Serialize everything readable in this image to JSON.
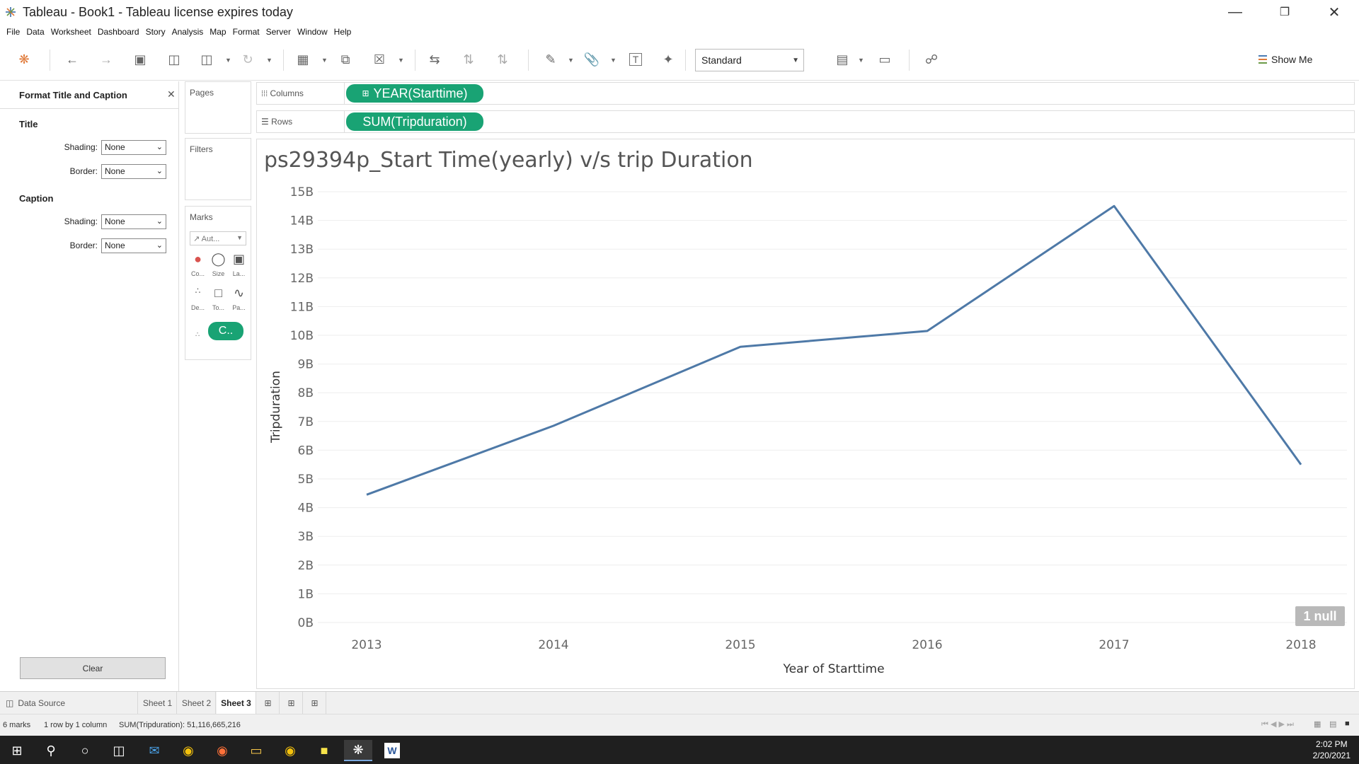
{
  "window": {
    "title": "Tableau - Book1 - Tableau license expires today"
  },
  "menu": [
    "File",
    "Data",
    "Worksheet",
    "Dashboard",
    "Story",
    "Analysis",
    "Map",
    "Format",
    "Server",
    "Window",
    "Help"
  ],
  "toolbar": {
    "fit_value": "Standard",
    "show_me": "Show Me"
  },
  "format_pane": {
    "header": "Format Title and Caption",
    "title_section": "Title",
    "caption_section": "Caption",
    "shading_label": "Shading:",
    "border_label": "Border:",
    "title_shading": "None",
    "title_border": "None",
    "caption_shading": "None",
    "caption_border": "None",
    "clear_label": "Clear"
  },
  "shelves": {
    "pages": "Pages",
    "filters": "Filters",
    "marks": "Marks",
    "marks_type": "Aut...",
    "mark_buttons": [
      "Co...",
      "Size",
      "La...",
      "De...",
      "To...",
      "Pa..."
    ],
    "marks_pill": "C..",
    "columns_label": "Columns",
    "rows_label": "Rows",
    "columns_pill": "YEAR(Starttime)",
    "rows_pill": "SUM(Tripduration)"
  },
  "chart_data": {
    "type": "line",
    "title": "ps29394p_Start Time(yearly) v/s  trip Duration",
    "xlabel": "Year of Starttime",
    "ylabel": "Tripduration",
    "categories": [
      "2013",
      "2014",
      "2015",
      "2016",
      "2017",
      "2018"
    ],
    "values": [
      4.45,
      6.85,
      9.6,
      10.15,
      14.5,
      5.5
    ],
    "y_ticks": [
      "0B",
      "1B",
      "2B",
      "3B",
      "4B",
      "5B",
      "6B",
      "7B",
      "8B",
      "9B",
      "10B",
      "11B",
      "12B",
      "13B",
      "14B",
      "15B"
    ],
    "ylim": [
      0,
      15
    ],
    "unit": "B",
    "line_color": "#4e79a7",
    "grid": true,
    "null_indicator": "1 null"
  },
  "tabs": {
    "data_source": "Data Source",
    "sheets": [
      "Sheet 1",
      "Sheet 2",
      "Sheet 3"
    ],
    "active": "Sheet 3"
  },
  "status": {
    "marks": "6 marks",
    "rows_cols": "1 row by 1 column",
    "sum": "SUM(Tripduration): 51,116,665,216"
  },
  "clock": {
    "time": "2:02 PM",
    "date": "2/20/2021"
  }
}
